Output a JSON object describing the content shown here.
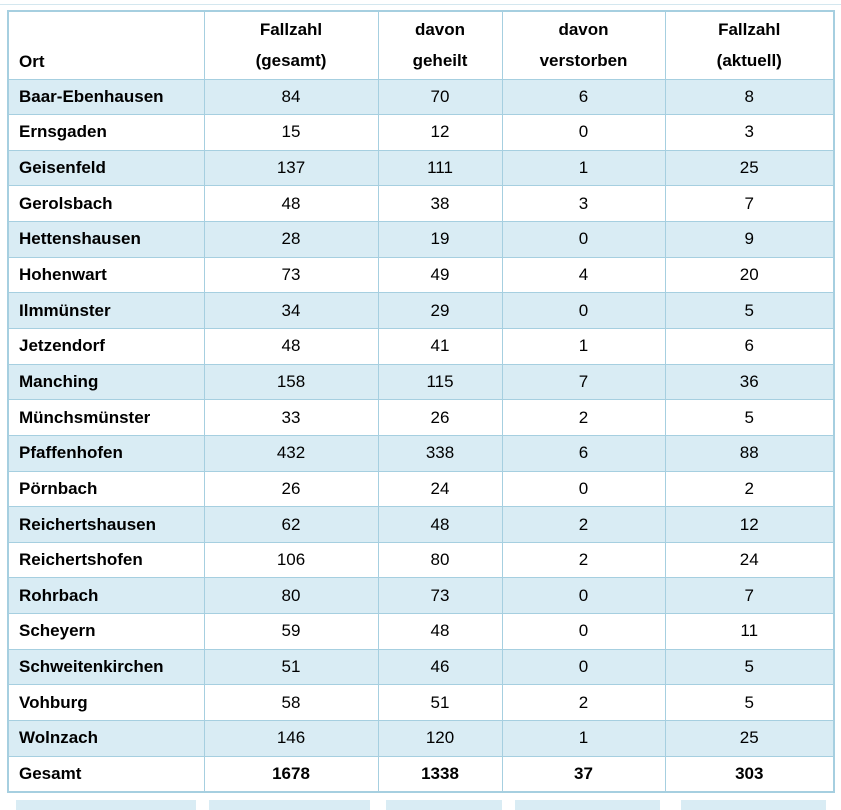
{
  "colors": {
    "row_shade": "#d9ecf4",
    "border": "#a6cfe0",
    "border_faint": "#d4e7ef",
    "text": "#000000"
  },
  "table": {
    "headers": [
      {
        "key": "ort",
        "line1": "",
        "line2": "Ort"
      },
      {
        "key": "gesamt",
        "line1": "Fallzahl",
        "line2": "(gesamt)"
      },
      {
        "key": "geheilt",
        "line1": "davon",
        "line2": "geheilt"
      },
      {
        "key": "verstorben",
        "line1": "davon",
        "line2": "verstorben"
      },
      {
        "key": "aktuell",
        "line1": "Fallzahl",
        "line2": "(aktuell)"
      }
    ],
    "rows": [
      {
        "ort": "Baar-Ebenhausen",
        "gesamt": "84",
        "geheilt": "70",
        "verstorben": "6",
        "aktuell": "8"
      },
      {
        "ort": "Ernsgaden",
        "gesamt": "15",
        "geheilt": "12",
        "verstorben": "0",
        "aktuell": "3"
      },
      {
        "ort": "Geisenfeld",
        "gesamt": "137",
        "geheilt": "111",
        "verstorben": "1",
        "aktuell": "25"
      },
      {
        "ort": "Gerolsbach",
        "gesamt": "48",
        "geheilt": "38",
        "verstorben": "3",
        "aktuell": "7"
      },
      {
        "ort": "Hettenshausen",
        "gesamt": "28",
        "geheilt": "19",
        "verstorben": "0",
        "aktuell": "9"
      },
      {
        "ort": "Hohenwart",
        "gesamt": "73",
        "geheilt": "49",
        "verstorben": "4",
        "aktuell": "20"
      },
      {
        "ort": "Ilmmünster",
        "gesamt": "34",
        "geheilt": "29",
        "verstorben": "0",
        "aktuell": "5"
      },
      {
        "ort": "Jetzendorf",
        "gesamt": "48",
        "geheilt": "41",
        "verstorben": "1",
        "aktuell": "6"
      },
      {
        "ort": "Manching",
        "gesamt": "158",
        "geheilt": "115",
        "verstorben": "7",
        "aktuell": "36"
      },
      {
        "ort": "Münchsmünster",
        "gesamt": "33",
        "geheilt": "26",
        "verstorben": "2",
        "aktuell": "5"
      },
      {
        "ort": "Pfaffenhofen",
        "gesamt": "432",
        "geheilt": "338",
        "verstorben": "6",
        "aktuell": "88"
      },
      {
        "ort": "Pörnbach",
        "gesamt": "26",
        "geheilt": "24",
        "verstorben": "0",
        "aktuell": "2"
      },
      {
        "ort": "Reichertshausen",
        "gesamt": "62",
        "geheilt": "48",
        "verstorben": "2",
        "aktuell": "12"
      },
      {
        "ort": "Reichertshofen",
        "gesamt": "106",
        "geheilt": "80",
        "verstorben": "2",
        "aktuell": "24"
      },
      {
        "ort": "Rohrbach",
        "gesamt": "80",
        "geheilt": "73",
        "verstorben": "0",
        "aktuell": "7"
      },
      {
        "ort": "Scheyern",
        "gesamt": "59",
        "geheilt": "48",
        "verstorben": "0",
        "aktuell": "11"
      },
      {
        "ort": "Schweitenkirchen",
        "gesamt": "51",
        "geheilt": "46",
        "verstorben": "0",
        "aktuell": "5"
      },
      {
        "ort": "Vohburg",
        "gesamt": "58",
        "geheilt": "51",
        "verstorben": "2",
        "aktuell": "5"
      },
      {
        "ort": "Wolnzach",
        "gesamt": "146",
        "geheilt": "120",
        "verstorben": "1",
        "aktuell": "25"
      }
    ],
    "total_row": {
      "ort": "Gesamt",
      "gesamt": "1678",
      "geheilt": "1338",
      "verstorben": "37",
      "aktuell": "303"
    }
  },
  "chart_data": {
    "type": "table",
    "columns": [
      "Ort",
      "Fallzahl (gesamt)",
      "davon geheilt",
      "davon verstorben",
      "Fallzahl (aktuell)"
    ],
    "rows": [
      [
        "Baar-Ebenhausen",
        84,
        70,
        6,
        8
      ],
      [
        "Ernsgaden",
        15,
        12,
        0,
        3
      ],
      [
        "Geisenfeld",
        137,
        111,
        1,
        25
      ],
      [
        "Gerolsbach",
        48,
        38,
        3,
        7
      ],
      [
        "Hettenshausen",
        28,
        19,
        0,
        9
      ],
      [
        "Hohenwart",
        73,
        49,
        4,
        20
      ],
      [
        "Ilmmünster",
        34,
        29,
        0,
        5
      ],
      [
        "Jetzendorf",
        48,
        41,
        1,
        6
      ],
      [
        "Manching",
        158,
        115,
        7,
        36
      ],
      [
        "Münchsmünster",
        33,
        26,
        2,
        5
      ],
      [
        "Pfaffenhofen",
        432,
        338,
        6,
        88
      ],
      [
        "Pörnbach",
        26,
        24,
        0,
        2
      ],
      [
        "Reichertshausen",
        62,
        48,
        2,
        12
      ],
      [
        "Reichertshofen",
        106,
        80,
        2,
        24
      ],
      [
        "Rohrbach",
        80,
        73,
        0,
        7
      ],
      [
        "Scheyern",
        59,
        48,
        0,
        11
      ],
      [
        "Schweitenkirchen",
        51,
        46,
        0,
        5
      ],
      [
        "Vohburg",
        58,
        51,
        2,
        5
      ],
      [
        "Wolnzach",
        146,
        120,
        1,
        25
      ],
      [
        "Gesamt",
        1678,
        1338,
        37,
        303
      ]
    ]
  }
}
